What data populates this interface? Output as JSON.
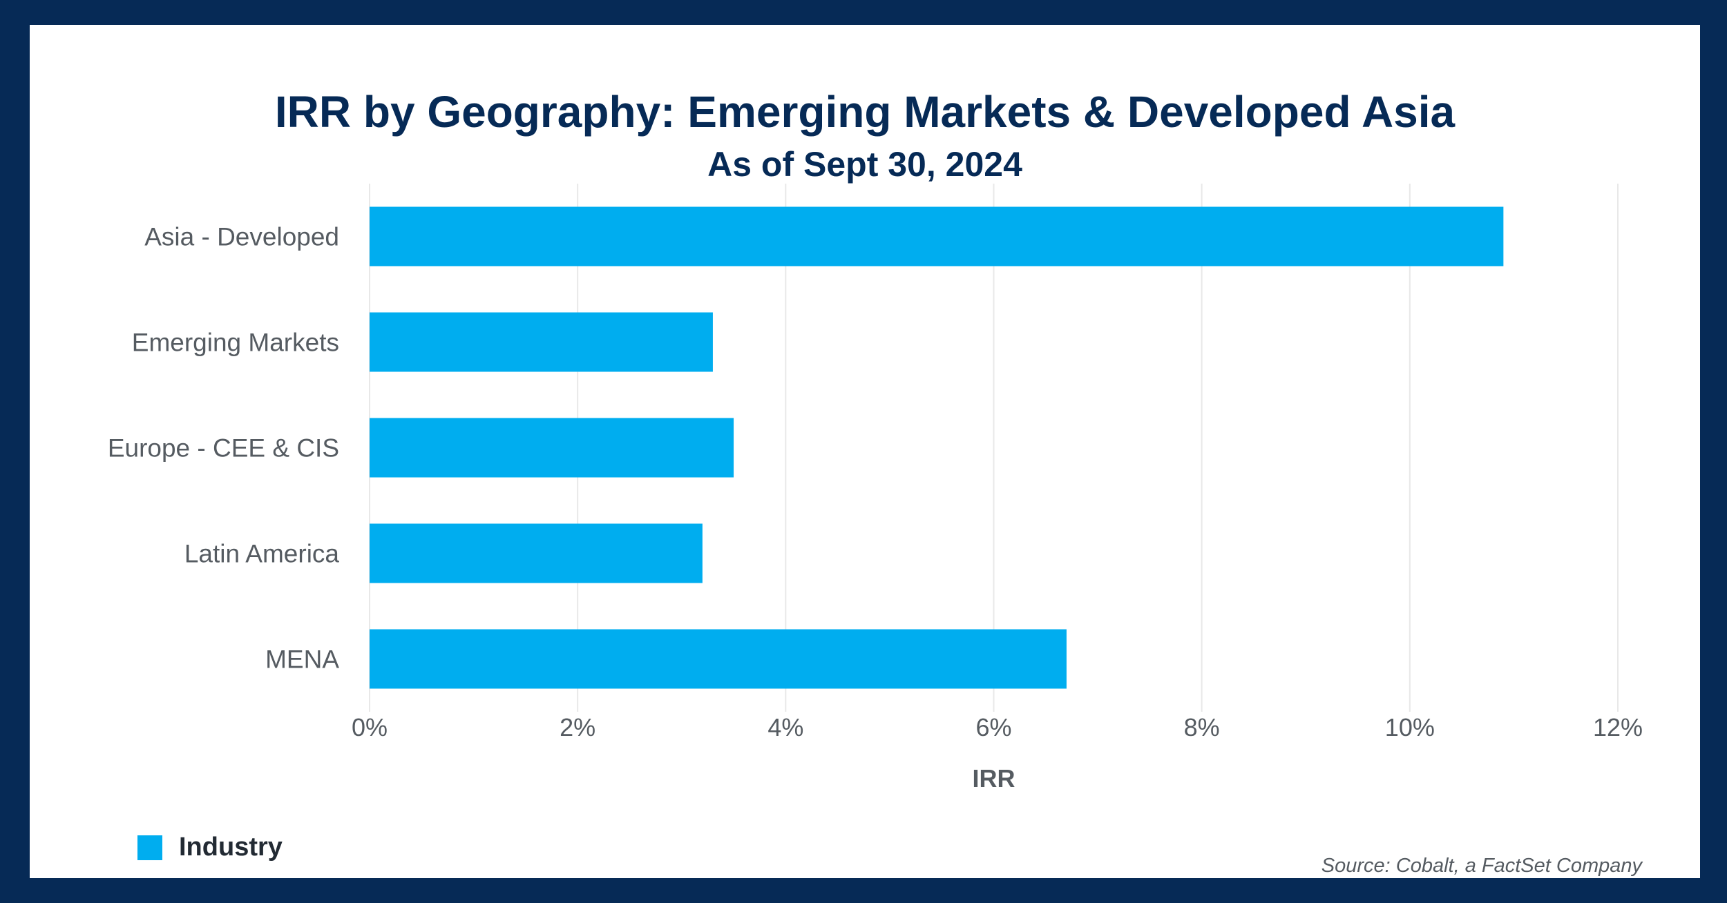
{
  "chart_data": {
    "type": "bar",
    "orientation": "horizontal",
    "title": "IRR by Geography: Emerging Markets & Developed Asia",
    "subtitle": "As of Sept 30, 2024",
    "categories": [
      "Asia - Developed",
      "Emerging Markets",
      "Europe - CEE & CIS",
      "Latin America",
      "MENA"
    ],
    "series": [
      {
        "name": "Industry",
        "values": [
          10.9,
          3.3,
          3.5,
          3.2,
          6.7
        ],
        "color": "#00adef"
      }
    ],
    "xlabel": "IRR",
    "ylabel": "",
    "xlim": [
      0,
      12
    ],
    "xticks": [
      0,
      2,
      4,
      6,
      8,
      10,
      12
    ],
    "tick_format": "{v}%",
    "grid": "vertical",
    "legend_position": "bottom-left",
    "source": "Source: Cobalt, a FactSet Company"
  },
  "colors": {
    "background": "#062a56",
    "card": "#ffffff",
    "bar": "#00adef",
    "title": "#062a56",
    "grid": "#e8e8e8"
  }
}
